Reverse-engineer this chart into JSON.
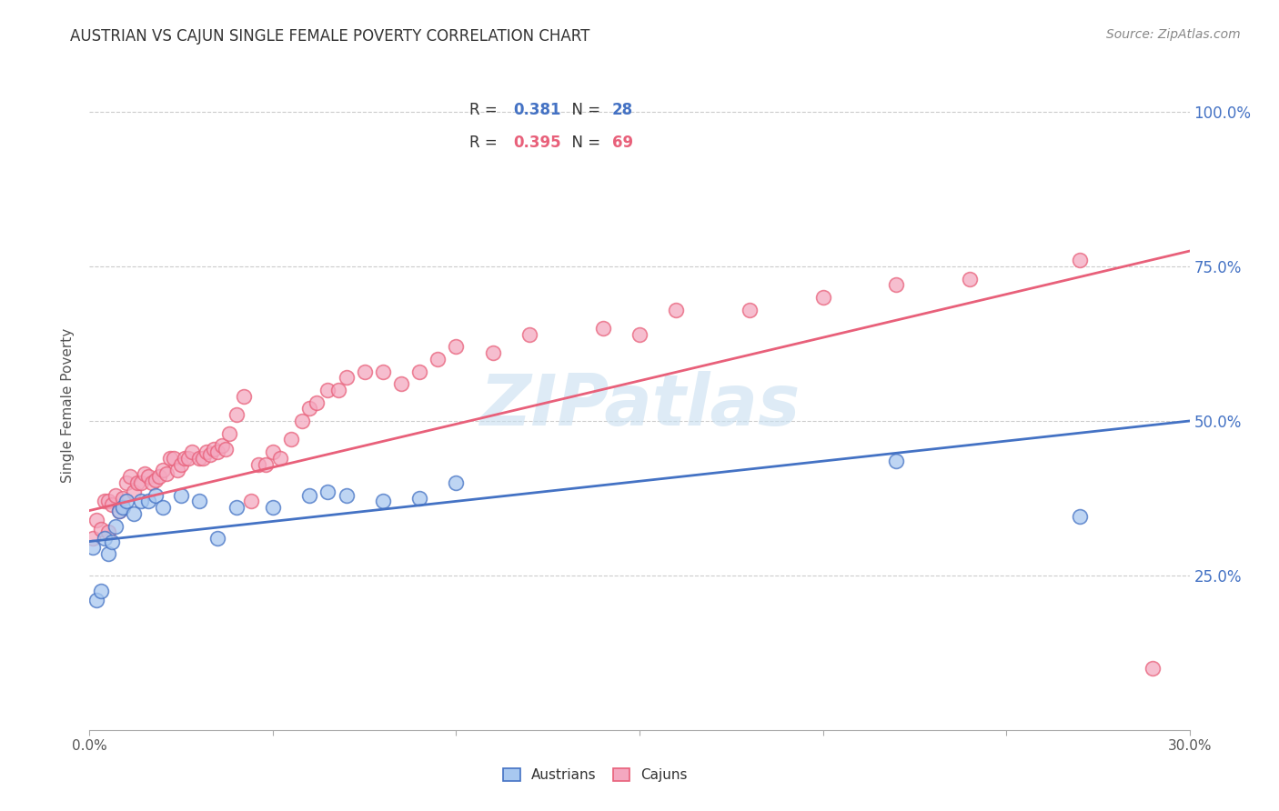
{
  "title": "AUSTRIAN VS CAJUN SINGLE FEMALE POVERTY CORRELATION CHART",
  "source": "Source: ZipAtlas.com",
  "ylabel": "Single Female Poverty",
  "y_ticks": [
    "25.0%",
    "50.0%",
    "75.0%",
    "100.0%"
  ],
  "y_tick_vals": [
    0.25,
    0.5,
    0.75,
    1.0
  ],
  "xlim": [
    0.0,
    0.3
  ],
  "ylim": [
    0.0,
    1.05
  ],
  "austrians_color": "#A8C8F0",
  "cajuns_color": "#F4A8C0",
  "line_austrians_color": "#4472C4",
  "line_cajuns_color": "#E8607A",
  "background_color": "#FFFFFF",
  "watermark_color": "#C8DFF0",
  "austrians_x": [
    0.001,
    0.002,
    0.003,
    0.004,
    0.005,
    0.006,
    0.007,
    0.008,
    0.009,
    0.01,
    0.012,
    0.014,
    0.016,
    0.018,
    0.02,
    0.025,
    0.03,
    0.035,
    0.04,
    0.05,
    0.06,
    0.065,
    0.07,
    0.08,
    0.09,
    0.1,
    0.22,
    0.27
  ],
  "austrians_y": [
    0.295,
    0.21,
    0.225,
    0.31,
    0.285,
    0.305,
    0.33,
    0.355,
    0.36,
    0.37,
    0.35,
    0.37,
    0.37,
    0.38,
    0.36,
    0.38,
    0.37,
    0.31,
    0.36,
    0.36,
    0.38,
    0.385,
    0.38,
    0.37,
    0.375,
    0.4,
    0.435,
    0.345
  ],
  "cajuns_x": [
    0.001,
    0.002,
    0.003,
    0.004,
    0.005,
    0.005,
    0.006,
    0.007,
    0.008,
    0.009,
    0.01,
    0.011,
    0.012,
    0.013,
    0.014,
    0.015,
    0.016,
    0.017,
    0.018,
    0.019,
    0.02,
    0.021,
    0.022,
    0.023,
    0.024,
    0.025,
    0.026,
    0.027,
    0.028,
    0.03,
    0.031,
    0.032,
    0.033,
    0.034,
    0.035,
    0.036,
    0.037,
    0.038,
    0.04,
    0.042,
    0.044,
    0.046,
    0.048,
    0.05,
    0.052,
    0.055,
    0.058,
    0.06,
    0.062,
    0.065,
    0.068,
    0.07,
    0.075,
    0.08,
    0.085,
    0.09,
    0.095,
    0.1,
    0.11,
    0.12,
    0.14,
    0.15,
    0.16,
    0.18,
    0.2,
    0.22,
    0.24,
    0.27,
    0.29
  ],
  "cajuns_y": [
    0.31,
    0.34,
    0.325,
    0.37,
    0.37,
    0.32,
    0.365,
    0.38,
    0.355,
    0.375,
    0.4,
    0.41,
    0.385,
    0.4,
    0.4,
    0.415,
    0.41,
    0.4,
    0.405,
    0.41,
    0.42,
    0.415,
    0.44,
    0.44,
    0.42,
    0.43,
    0.44,
    0.44,
    0.45,
    0.44,
    0.44,
    0.45,
    0.445,
    0.455,
    0.45,
    0.46,
    0.455,
    0.48,
    0.51,
    0.54,
    0.37,
    0.43,
    0.43,
    0.45,
    0.44,
    0.47,
    0.5,
    0.52,
    0.53,
    0.55,
    0.55,
    0.57,
    0.58,
    0.58,
    0.56,
    0.58,
    0.6,
    0.62,
    0.61,
    0.64,
    0.65,
    0.64,
    0.68,
    0.68,
    0.7,
    0.72,
    0.73,
    0.76,
    0.1
  ],
  "line_austrians_y0": 0.305,
  "line_austrians_y1": 0.5,
  "line_cajuns_y0": 0.355,
  "line_cajuns_y1": 0.775
}
